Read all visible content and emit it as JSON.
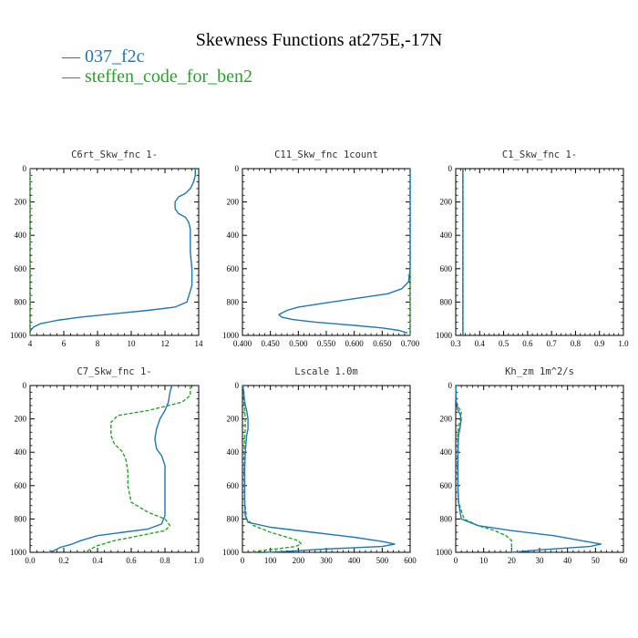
{
  "header": {
    "title": "Skewness Functions at275E,-17N",
    "legend": [
      {
        "label": "037_f2c",
        "color": "#1f77b4"
      },
      {
        "label": "steffen_code_for_ben2",
        "color": "#2ca02c"
      }
    ]
  },
  "chart_data": [
    {
      "type": "line",
      "title": "C6rt_Skw_fnc  1-",
      "xlim": [
        4,
        14
      ],
      "ylim": [
        1000,
        0
      ],
      "xticks": [
        4,
        6,
        8,
        10,
        12,
        14
      ],
      "xtick_labels": [
        "4",
        "6",
        "8",
        "10",
        "12",
        "14"
      ],
      "yticks": [
        0,
        200,
        400,
        600,
        800,
        1000
      ],
      "ytick_labels": [
        "0",
        "200",
        "400",
        "600",
        "800",
        "1000"
      ],
      "series": [
        {
          "name": "037_f2c",
          "color": "#1f77b4",
          "dash": "",
          "x": [
            13.8,
            13.8,
            13.7,
            13.5,
            13.2,
            12.8,
            12.6,
            12.6,
            12.8,
            13.2,
            13.4,
            13.5,
            13.5,
            13.5,
            13.6,
            13.6,
            13.3,
            12.6,
            11.0,
            9.0,
            7.0,
            5.6,
            4.6,
            4.2,
            4.0
          ],
          "y": [
            0,
            40,
            80,
            120,
            150,
            170,
            200,
            240,
            270,
            290,
            320,
            360,
            400,
            500,
            600,
            700,
            800,
            830,
            850,
            870,
            890,
            910,
            930,
            950,
            975
          ]
        },
        {
          "name": "steffen_code_for_ben2",
          "color": "#2ca02c",
          "dash": "4,2",
          "x": [
            4.0,
            4.0,
            4.0
          ],
          "y": [
            0,
            500,
            1000
          ]
        }
      ]
    },
    {
      "type": "line",
      "title": "C11_Skw_fnc  1count",
      "xlim": [
        0.4,
        0.7
      ],
      "ylim": [
        1000,
        0
      ],
      "xticks": [
        0.4,
        0.45,
        0.5,
        0.55,
        0.6,
        0.65,
        0.7
      ],
      "xtick_labels": [
        "0.400",
        "0.450",
        "0.500",
        "0.550",
        "0.600",
        "0.650",
        "0.700"
      ],
      "yticks": [
        0,
        200,
        400,
        600,
        800,
        1000
      ],
      "ytick_labels": [
        "0",
        "200",
        "400",
        "600",
        "800",
        "1000"
      ],
      "series": [
        {
          "name": "037_f2c",
          "color": "#1f77b4",
          "dash": "",
          "x": [
            0.7,
            0.7,
            0.7,
            0.697,
            0.685,
            0.66,
            0.6,
            0.54,
            0.5,
            0.48,
            0.465,
            0.47,
            0.49,
            0.53,
            0.6,
            0.65,
            0.68,
            0.695
          ],
          "y": [
            0,
            200,
            600,
            680,
            720,
            750,
            780,
            810,
            830,
            850,
            875,
            890,
            905,
            920,
            940,
            955,
            970,
            985
          ]
        },
        {
          "name": "steffen_code_for_ben2",
          "color": "#2ca02c",
          "dash": "4,2",
          "x": [
            0.7,
            0.7
          ],
          "y": [
            0,
            1000
          ]
        }
      ]
    },
    {
      "type": "line",
      "title": "C1_Skw_fnc  1-",
      "xlim": [
        0.3,
        1.0
      ],
      "ylim": [
        1000,
        0
      ],
      "xticks": [
        0.3,
        0.4,
        0.5,
        0.6,
        0.7,
        0.8,
        0.9,
        1.0
      ],
      "xtick_labels": [
        "0.3",
        "0.4",
        "0.5",
        "0.6",
        "0.7",
        "0.8",
        "0.9",
        "1.0"
      ],
      "yticks": [
        0,
        200,
        400,
        600,
        800,
        1000
      ],
      "ytick_labels": [
        "0",
        "200",
        "400",
        "600",
        "800",
        "1000"
      ],
      "series": [
        {
          "name": "037_f2c",
          "color": "#1f77b4",
          "dash": "",
          "x": [
            0.33,
            0.33
          ],
          "y": [
            0,
            1000
          ]
        },
        {
          "name": "steffen_code_for_ben2",
          "color": "#2ca02c",
          "dash": "4,2",
          "x": [
            0.33,
            0.33
          ],
          "y": [
            0,
            1000
          ]
        }
      ]
    },
    {
      "type": "line",
      "title": "C7_Skw_fnc  1-",
      "xlim": [
        0.0,
        1.0
      ],
      "ylim": [
        1000,
        0
      ],
      "xticks": [
        0,
        0.2,
        0.4,
        0.6,
        0.8,
        1.0
      ],
      "xtick_labels": [
        "0.0",
        "0.2",
        "0.4",
        "0.6",
        "0.8",
        "1.0"
      ],
      "yticks": [
        0,
        200,
        400,
        600,
        800,
        1000
      ],
      "ytick_labels": [
        "0",
        "200",
        "400",
        "600",
        "800",
        "1000"
      ],
      "series": [
        {
          "name": "037_f2c",
          "color": "#1f77b4",
          "dash": "",
          "x": [
            0.84,
            0.83,
            0.82,
            0.8,
            0.77,
            0.75,
            0.74,
            0.75,
            0.78,
            0.8,
            0.8,
            0.8,
            0.8,
            0.78,
            0.7,
            0.55,
            0.4,
            0.3,
            0.25,
            0.18,
            0.14,
            0.11
          ],
          "y": [
            0,
            40,
            100,
            150,
            200,
            260,
            320,
            380,
            420,
            480,
            600,
            700,
            780,
            830,
            860,
            880,
            900,
            930,
            950,
            970,
            990,
            1000
          ]
        },
        {
          "name": "steffen_code_for_ben2",
          "color": "#2ca02c",
          "dash": "4,2",
          "x": [
            0.95,
            0.95,
            0.9,
            0.7,
            0.52,
            0.48,
            0.48,
            0.5,
            0.55,
            0.57,
            0.58,
            0.58,
            0.6,
            0.7,
            0.8,
            0.83,
            0.8,
            0.65,
            0.5,
            0.4,
            0.35,
            0.33
          ],
          "y": [
            0,
            60,
            100,
            150,
            180,
            220,
            300,
            350,
            400,
            450,
            520,
            600,
            700,
            760,
            800,
            840,
            870,
            900,
            930,
            960,
            985,
            1000
          ]
        }
      ]
    },
    {
      "type": "line",
      "title": "Lscale  1.0m",
      "xlim": [
        0,
        600
      ],
      "ylim": [
        1000,
        0
      ],
      "xticks": [
        0,
        100,
        200,
        300,
        400,
        500,
        600
      ],
      "xtick_labels": [
        "0",
        "100",
        "200",
        "300",
        "400",
        "500",
        "600"
      ],
      "yticks": [
        0,
        200,
        400,
        600,
        800,
        1000
      ],
      "ytick_labels": [
        "0",
        "200",
        "400",
        "600",
        "800",
        "1000"
      ],
      "series": [
        {
          "name": "037_f2c",
          "color": "#1f77b4",
          "dash": "",
          "x": [
            2,
            8,
            15,
            20,
            20,
            15,
            10,
            8,
            8,
            8,
            10,
            20,
            100,
            250,
            400,
            500,
            545,
            500,
            300,
            150,
            80
          ],
          "y": [
            0,
            100,
            150,
            200,
            260,
            300,
            400,
            500,
            600,
            700,
            780,
            820,
            850,
            880,
            910,
            935,
            950,
            965,
            980,
            995,
            1000
          ]
        },
        {
          "name": "steffen_code_for_ben2",
          "color": "#2ca02c",
          "dash": "4,2",
          "x": [
            2,
            5,
            8,
            10,
            10,
            8,
            6,
            6,
            6,
            8,
            15,
            40,
            100,
            160,
            200,
            210,
            190,
            120,
            60,
            30
          ],
          "y": [
            0,
            100,
            150,
            200,
            260,
            300,
            400,
            500,
            600,
            700,
            800,
            840,
            880,
            910,
            930,
            950,
            965,
            980,
            992,
            1000
          ]
        }
      ]
    },
    {
      "type": "line",
      "title": "Kh_zm  1m^2/s",
      "xlim": [
        0,
        60
      ],
      "ylim": [
        1000,
        0
      ],
      "xticks": [
        0,
        10,
        20,
        30,
        40,
        50,
        60
      ],
      "xtick_labels": [
        "0",
        "10",
        "20",
        "30",
        "40",
        "50",
        "60"
      ],
      "yticks": [
        0,
        200,
        400,
        600,
        800,
        1000
      ],
      "ytick_labels": [
        "0",
        "200",
        "400",
        "600",
        "800",
        "1000"
      ],
      "series": [
        {
          "name": "037_f2c",
          "color": "#1f77b4",
          "dash": "",
          "x": [
            0,
            0.2,
            0.6,
            1.5,
            2.0,
            1.6,
            1.0,
            0.8,
            0.8,
            0.8,
            1.0,
            2,
            8,
            20,
            35,
            45,
            52,
            48,
            30,
            20
          ],
          "y": [
            0,
            100,
            140,
            170,
            200,
            250,
            300,
            400,
            500,
            600,
            700,
            800,
            840,
            870,
            900,
            930,
            950,
            965,
            985,
            1000
          ]
        },
        {
          "name": "steffen_code_for_ben2",
          "color": "#2ca02c",
          "dash": "4,2",
          "x": [
            0,
            0.3,
            1.0,
            2.0,
            1.6,
            1.0,
            0.7,
            0.6,
            0.6,
            0.7,
            1.0,
            3,
            8,
            14,
            18,
            20,
            20,
            20
          ],
          "y": [
            0,
            100,
            130,
            160,
            200,
            250,
            300,
            400,
            500,
            600,
            700,
            800,
            840,
            870,
            900,
            930,
            970,
            1000
          ]
        }
      ]
    }
  ]
}
